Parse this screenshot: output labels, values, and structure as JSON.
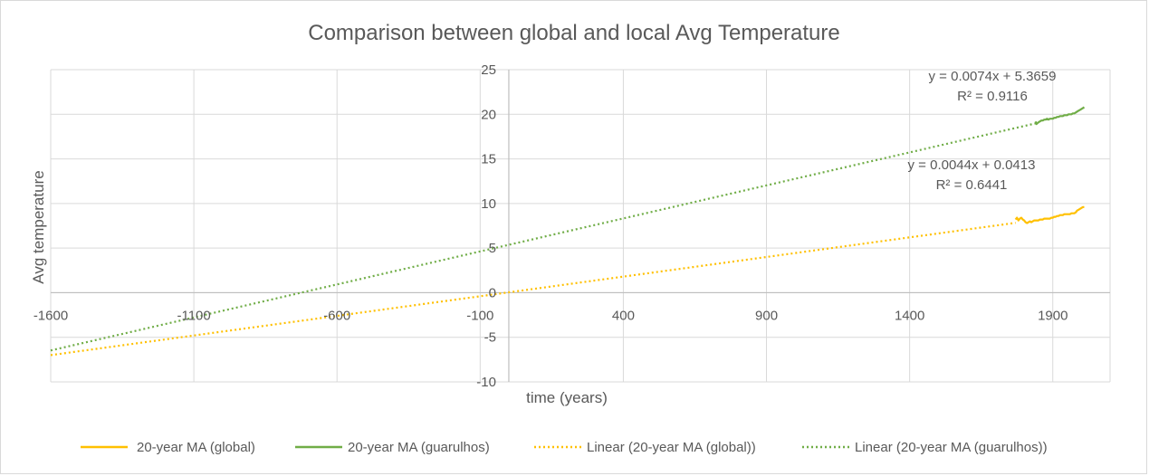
{
  "chart_data": {
    "type": "scatter",
    "title": "Comparison between global and local Avg Temperature",
    "xlabel": "time (years)",
    "ylabel": "Avg temperature",
    "xlim": [
      -1600,
      2100
    ],
    "ylim": [
      -10,
      25
    ],
    "x_ticks": [
      -1600,
      -1100,
      -600,
      -100,
      400,
      900,
      1400,
      1900
    ],
    "y_ticks": [
      -10,
      -5,
      0,
      5,
      10,
      15,
      20,
      25
    ],
    "grid": true,
    "legend_position": "bottom",
    "series": [
      {
        "name": "20-year MA (global)",
        "color": "#FFC000",
        "style": "solid",
        "points": [
          [
            1770,
            8.2
          ],
          [
            1775,
            8.4
          ],
          [
            1780,
            8.1
          ],
          [
            1785,
            8.3
          ],
          [
            1790,
            8.4
          ],
          [
            1795,
            8.2
          ],
          [
            1800,
            8.1
          ],
          [
            1805,
            7.9
          ],
          [
            1810,
            7.8
          ],
          [
            1815,
            7.9
          ],
          [
            1820,
            8.0
          ],
          [
            1825,
            7.9
          ],
          [
            1830,
            8.0
          ],
          [
            1835,
            8.1
          ],
          [
            1840,
            8.1
          ],
          [
            1845,
            8.1
          ],
          [
            1850,
            8.1
          ],
          [
            1855,
            8.2
          ],
          [
            1860,
            8.2
          ],
          [
            1865,
            8.2
          ],
          [
            1870,
            8.3
          ],
          [
            1875,
            8.3
          ],
          [
            1880,
            8.3
          ],
          [
            1885,
            8.3
          ],
          [
            1890,
            8.3
          ],
          [
            1895,
            8.4
          ],
          [
            1900,
            8.4
          ],
          [
            1905,
            8.5
          ],
          [
            1910,
            8.5
          ],
          [
            1915,
            8.6
          ],
          [
            1920,
            8.6
          ],
          [
            1925,
            8.7
          ],
          [
            1930,
            8.7
          ],
          [
            1935,
            8.7
          ],
          [
            1940,
            8.8
          ],
          [
            1945,
            8.8
          ],
          [
            1950,
            8.8
          ],
          [
            1955,
            8.8
          ],
          [
            1960,
            8.8
          ],
          [
            1965,
            8.9
          ],
          [
            1970,
            8.9
          ],
          [
            1975,
            8.9
          ],
          [
            1980,
            9.0
          ],
          [
            1985,
            9.2
          ],
          [
            1990,
            9.3
          ],
          [
            1995,
            9.4
          ],
          [
            2000,
            9.5
          ],
          [
            2005,
            9.6
          ],
          [
            2010,
            9.6
          ]
        ]
      },
      {
        "name": "20-year MA (guarulhos)",
        "color": "#70AD47",
        "style": "solid",
        "points": [
          [
            1840,
            19.2
          ],
          [
            1843,
            18.9
          ],
          [
            1846,
            19.0
          ],
          [
            1850,
            19.1
          ],
          [
            1855,
            19.2
          ],
          [
            1860,
            19.3
          ],
          [
            1865,
            19.3
          ],
          [
            1870,
            19.4
          ],
          [
            1875,
            19.4
          ],
          [
            1880,
            19.5
          ],
          [
            1885,
            19.4
          ],
          [
            1890,
            19.5
          ],
          [
            1895,
            19.5
          ],
          [
            1900,
            19.5
          ],
          [
            1905,
            19.6
          ],
          [
            1910,
            19.6
          ],
          [
            1915,
            19.7
          ],
          [
            1920,
            19.7
          ],
          [
            1925,
            19.8
          ],
          [
            1930,
            19.8
          ],
          [
            1935,
            19.8
          ],
          [
            1940,
            19.9
          ],
          [
            1945,
            19.9
          ],
          [
            1950,
            19.9
          ],
          [
            1955,
            20.0
          ],
          [
            1960,
            20.0
          ],
          [
            1965,
            20.0
          ],
          [
            1970,
            20.1
          ],
          [
            1975,
            20.1
          ],
          [
            1980,
            20.2
          ],
          [
            1985,
            20.3
          ],
          [
            1990,
            20.4
          ],
          [
            1995,
            20.5
          ],
          [
            2000,
            20.6
          ],
          [
            2005,
            20.7
          ],
          [
            2010,
            20.8
          ]
        ]
      }
    ],
    "trendlines": [
      {
        "name": "Linear (20-year MA (global))",
        "color": "#FFC000",
        "style": "dotted",
        "slope": 0.0044,
        "intercept": 0.0413,
        "x_range": [
          -1600,
          1770
        ],
        "equation": "y = 0.0044x + 0.0413",
        "r2": "R² = 0.6441"
      },
      {
        "name": "Linear (20-year MA (guarulhos))",
        "color": "#70AD47",
        "style": "dotted",
        "slope": 0.0074,
        "intercept": 5.3659,
        "x_range": [
          -1600,
          1840
        ],
        "equation": "y = 0.0074x + 5.3659",
        "r2": "R² = 0.9116"
      }
    ]
  }
}
